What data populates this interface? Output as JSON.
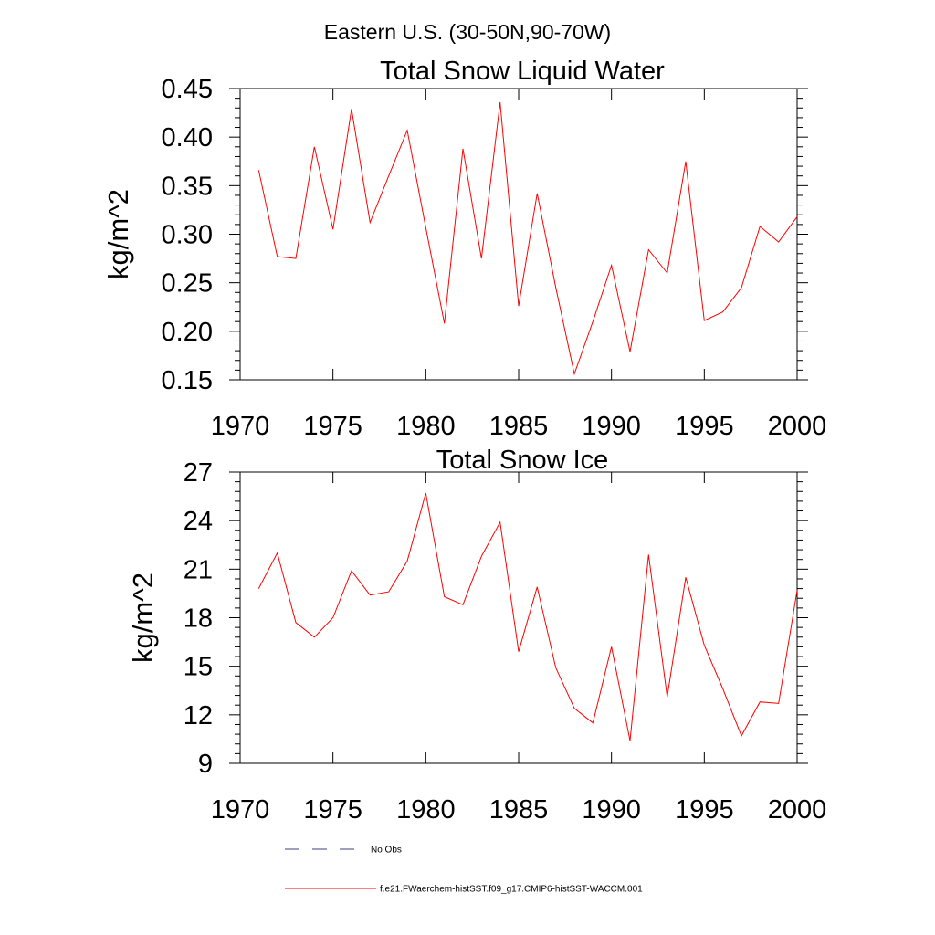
{
  "figure": {
    "suptitle": "Eastern U.S. (30-50N,90-70W)"
  },
  "legend": {
    "items": [
      {
        "label": "No Obs",
        "color": "#3d3d8f",
        "dash": true
      },
      {
        "label": "f.e21.FWaerchem-histSST.f09_g17.CMIP6-histSST-WACCM.001",
        "color": "#ff0000",
        "dash": false
      }
    ]
  },
  "chart_data": [
    {
      "type": "line",
      "title": "Total Snow Liquid Water",
      "xlabel": "",
      "ylabel": "kg/m^2",
      "xlim": [
        1970,
        2000
      ],
      "ylim": [
        0.15,
        0.45
      ],
      "xticks": [
        "1970",
        "1975",
        "1980",
        "1985",
        "1990",
        "1995",
        "2000"
      ],
      "yticks": [
        "0.15",
        "0.20",
        "0.25",
        "0.30",
        "0.35",
        "0.40",
        "0.45"
      ],
      "grid": false,
      "series": [
        {
          "name": "f.e21.FWaerchem-histSST.f09_g17.CMIP6-histSST-WACCM.001",
          "color": "#ff0000",
          "x": [
            1971,
            1972,
            1973,
            1974,
            1975,
            1976,
            1977,
            1978,
            1979,
            1980,
            1981,
            1982,
            1983,
            1984,
            1985,
            1986,
            1987,
            1988,
            1989,
            1990,
            1991,
            1992,
            1993,
            1994,
            1995,
            1996,
            1997,
            1998,
            1999,
            2000
          ],
          "y": [
            0.366,
            0.277,
            0.275,
            0.39,
            0.305,
            0.429,
            0.312,
            0.36,
            0.407,
            0.307,
            0.208,
            0.388,
            0.275,
            0.436,
            0.226,
            0.342,
            0.245,
            0.156,
            0.21,
            0.268,
            0.179,
            0.284,
            0.26,
            0.375,
            0.211,
            0.22,
            0.245,
            0.308,
            0.292,
            0.318
          ]
        }
      ]
    },
    {
      "type": "line",
      "title": "Total Snow Ice",
      "xlabel": "",
      "ylabel": "kg/m^2",
      "xlim": [
        1970,
        2000
      ],
      "ylim": [
        9,
        27
      ],
      "xticks": [
        "1970",
        "1975",
        "1980",
        "1985",
        "1990",
        "1995",
        "2000"
      ],
      "yticks": [
        "9",
        "12",
        "15",
        "18",
        "21",
        "24",
        "27"
      ],
      "grid": false,
      "series": [
        {
          "name": "f.e21.FWaerchem-histSST.f09_g17.CMIP6-histSST-WACCM.001",
          "color": "#ff0000",
          "x": [
            1971,
            1972,
            1973,
            1974,
            1975,
            1976,
            1977,
            1978,
            1979,
            1980,
            1981,
            1982,
            1983,
            1984,
            1985,
            1986,
            1987,
            1988,
            1989,
            1990,
            1991,
            1992,
            1993,
            1994,
            1995,
            1996,
            1997,
            1998,
            1999,
            2000
          ],
          "y": [
            19.8,
            22.0,
            17.7,
            16.8,
            18.0,
            20.9,
            19.4,
            19.6,
            21.5,
            25.7,
            19.3,
            18.8,
            21.8,
            23.9,
            15.9,
            19.9,
            14.9,
            12.4,
            11.5,
            16.2,
            10.4,
            21.9,
            13.1,
            20.5,
            16.3,
            13.6,
            10.7,
            12.8,
            12.7,
            19.7
          ]
        }
      ]
    }
  ]
}
